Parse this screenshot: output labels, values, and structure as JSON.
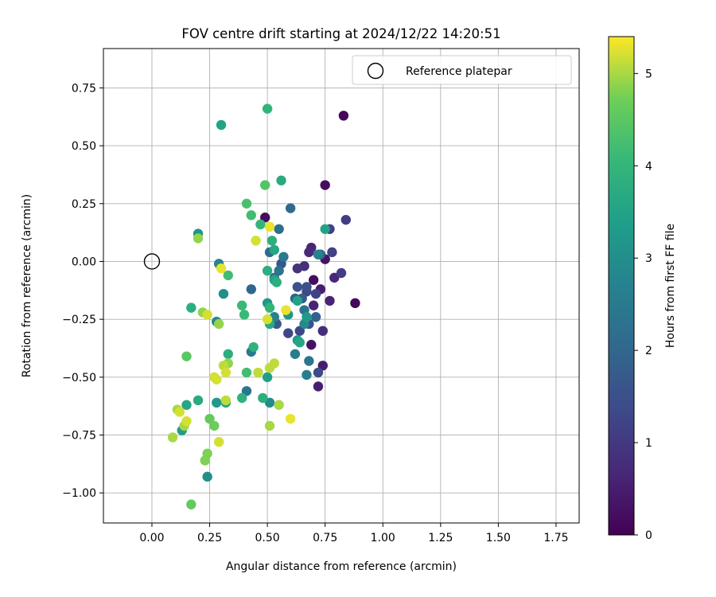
{
  "chart_data": {
    "type": "scatter",
    "title": "FOV centre drift starting at 2024/12/22 14:20:51",
    "xlabel": "Angular distance from reference (arcmin)",
    "ylabel": "Rotation from reference (arcmin)",
    "xlim": [
      -0.21,
      1.85
    ],
    "ylim": [
      -1.13,
      0.92
    ],
    "xticks": [
      0.0,
      0.25,
      0.5,
      0.75,
      1.0,
      1.25,
      1.5,
      1.75
    ],
    "xtick_labels": [
      "0.00",
      "0.25",
      "0.50",
      "0.75",
      "1.00",
      "1.25",
      "1.50",
      "1.75"
    ],
    "yticks": [
      0.75,
      0.5,
      0.25,
      0.0,
      -0.25,
      -0.5,
      -0.75,
      -1.0
    ],
    "ytick_labels": [
      "0.75",
      "0.50",
      "0.25",
      "0.00",
      "−0.25",
      "−0.50",
      "−0.75",
      "−1.00"
    ],
    "grid": true,
    "legend": {
      "label": "Reference platepar",
      "location": "upper right"
    },
    "reference_point": {
      "x": 0.0,
      "y": 0.0
    },
    "colorbar": {
      "label": "Hours from first FF file",
      "range": [
        0,
        5.4
      ],
      "ticks": [
        0,
        1,
        2,
        3,
        4,
        5
      ],
      "tick_labels": [
        "0",
        "1",
        "2",
        "3",
        "4",
        "5"
      ],
      "colormap": "viridis"
    },
    "points": [
      {
        "x": 0.83,
        "y": 0.63,
        "h": 0.1
      },
      {
        "x": 0.75,
        "y": 0.33,
        "h": 0.2
      },
      {
        "x": 0.88,
        "y": -0.18,
        "h": 0.1
      },
      {
        "x": 0.49,
        "y": 0.19,
        "h": 0.2
      },
      {
        "x": 0.7,
        "y": -0.08,
        "h": 0.2
      },
      {
        "x": 0.75,
        "y": 0.01,
        "h": 0.3
      },
      {
        "x": 0.69,
        "y": -0.36,
        "h": 0.3
      },
      {
        "x": 0.72,
        "y": -0.54,
        "h": 0.5
      },
      {
        "x": 0.74,
        "y": -0.45,
        "h": 0.5
      },
      {
        "x": 0.73,
        "y": -0.12,
        "h": 0.5
      },
      {
        "x": 0.69,
        "y": 0.06,
        "h": 0.6
      },
      {
        "x": 0.68,
        "y": 0.04,
        "h": 0.7
      },
      {
        "x": 0.7,
        "y": -0.19,
        "h": 0.6
      },
      {
        "x": 0.77,
        "y": -0.17,
        "h": 0.6
      },
      {
        "x": 0.79,
        "y": -0.07,
        "h": 0.7
      },
      {
        "x": 0.74,
        "y": -0.3,
        "h": 0.8
      },
      {
        "x": 0.66,
        "y": -0.02,
        "h": 0.8
      },
      {
        "x": 0.63,
        "y": -0.03,
        "h": 0.9
      },
      {
        "x": 0.84,
        "y": 0.18,
        "h": 1.1
      },
      {
        "x": 0.82,
        "y": -0.05,
        "h": 1.1
      },
      {
        "x": 0.77,
        "y": 0.14,
        "h": 1.2
      },
      {
        "x": 0.78,
        "y": 0.04,
        "h": 1.2
      },
      {
        "x": 0.71,
        "y": -0.14,
        "h": 1.2
      },
      {
        "x": 0.67,
        "y": -0.13,
        "h": 1.3
      },
      {
        "x": 0.64,
        "y": -0.3,
        "h": 1.3
      },
      {
        "x": 0.59,
        "y": -0.31,
        "h": 1.3
      },
      {
        "x": 0.72,
        "y": -0.48,
        "h": 1.4
      },
      {
        "x": 0.67,
        "y": -0.11,
        "h": 1.5
      },
      {
        "x": 0.63,
        "y": -0.11,
        "h": 1.5
      },
      {
        "x": 0.68,
        "y": -0.27,
        "h": 1.5
      },
      {
        "x": 0.56,
        "y": -0.01,
        "h": 1.6
      },
      {
        "x": 0.54,
        "y": -0.27,
        "h": 1.7
      },
      {
        "x": 0.65,
        "y": -0.16,
        "h": 1.7
      },
      {
        "x": 0.73,
        "y": 0.03,
        "h": 1.8
      },
      {
        "x": 0.62,
        "y": -0.16,
        "h": 1.9
      },
      {
        "x": 0.71,
        "y": -0.24,
        "h": 1.9
      },
      {
        "x": 0.43,
        "y": -0.12,
        "h": 2.0
      },
      {
        "x": 0.51,
        "y": 0.04,
        "h": 2.1
      },
      {
        "x": 0.6,
        "y": 0.23,
        "h": 2.1
      },
      {
        "x": 0.55,
        "y": 0.14,
        "h": 2.2
      },
      {
        "x": 0.53,
        "y": -0.07,
        "h": 2.2
      },
      {
        "x": 0.55,
        "y": -0.04,
        "h": 2.3
      },
      {
        "x": 0.66,
        "y": -0.21,
        "h": 2.3
      },
      {
        "x": 0.68,
        "y": -0.43,
        "h": 2.4
      },
      {
        "x": 0.41,
        "y": -0.56,
        "h": 2.4
      },
      {
        "x": 0.43,
        "y": -0.39,
        "h": 2.5
      },
      {
        "x": 0.57,
        "y": 0.02,
        "h": 2.5
      },
      {
        "x": 0.62,
        "y": -0.4,
        "h": 2.6
      },
      {
        "x": 0.67,
        "y": -0.49,
        "h": 2.6
      },
      {
        "x": 0.72,
        "y": 0.03,
        "h": 2.7
      },
      {
        "x": 0.53,
        "y": -0.24,
        "h": 2.7
      },
      {
        "x": 0.29,
        "y": -0.01,
        "h": 2.8
      },
      {
        "x": 0.28,
        "y": -0.26,
        "h": 2.8
      },
      {
        "x": 0.66,
        "y": -0.27,
        "h": 2.9
      },
      {
        "x": 0.51,
        "y": -0.61,
        "h": 2.9
      },
      {
        "x": 0.31,
        "y": -0.14,
        "h": 3.0
      },
      {
        "x": 0.24,
        "y": -0.93,
        "h": 3.0
      },
      {
        "x": 0.2,
        "y": 0.12,
        "h": 3.1
      },
      {
        "x": 0.5,
        "y": -0.18,
        "h": 3.2
      },
      {
        "x": 0.59,
        "y": -0.23,
        "h": 3.2
      },
      {
        "x": 0.67,
        "y": -0.24,
        "h": 3.3
      },
      {
        "x": 0.63,
        "y": -0.34,
        "h": 3.3
      },
      {
        "x": 0.28,
        "y": -0.61,
        "h": 3.3
      },
      {
        "x": 0.13,
        "y": -0.73,
        "h": 3.4
      },
      {
        "x": 0.5,
        "y": -0.5,
        "h": 3.4
      },
      {
        "x": 0.63,
        "y": -0.17,
        "h": 3.5
      },
      {
        "x": 0.3,
        "y": 0.59,
        "h": 3.5
      },
      {
        "x": 0.53,
        "y": -0.08,
        "h": 3.5
      },
      {
        "x": 0.75,
        "y": 0.14,
        "h": 3.5
      },
      {
        "x": 0.53,
        "y": 0.05,
        "h": 3.6
      },
      {
        "x": 0.64,
        "y": -0.35,
        "h": 3.6
      },
      {
        "x": 0.32,
        "y": -0.61,
        "h": 3.6
      },
      {
        "x": 0.15,
        "y": -0.62,
        "h": 3.6
      },
      {
        "x": 0.2,
        "y": -0.6,
        "h": 3.7
      },
      {
        "x": 0.51,
        "y": -0.27,
        "h": 3.7
      },
      {
        "x": 0.56,
        "y": 0.35,
        "h": 3.7
      },
      {
        "x": 0.52,
        "y": 0.09,
        "h": 3.8
      },
      {
        "x": 0.54,
        "y": -0.09,
        "h": 3.8
      },
      {
        "x": 0.5,
        "y": -0.04,
        "h": 3.8
      },
      {
        "x": 0.48,
        "y": -0.59,
        "h": 3.8
      },
      {
        "x": 0.33,
        "y": -0.4,
        "h": 3.8
      },
      {
        "x": 0.17,
        "y": -0.2,
        "h": 3.8
      },
      {
        "x": 0.44,
        "y": -0.37,
        "h": 3.9
      },
      {
        "x": 0.39,
        "y": -0.59,
        "h": 3.9
      },
      {
        "x": 0.5,
        "y": 0.66,
        "h": 4.0
      },
      {
        "x": 0.47,
        "y": 0.16,
        "h": 4.0
      },
      {
        "x": 0.51,
        "y": -0.2,
        "h": 4.0
      },
      {
        "x": 0.39,
        "y": -0.19,
        "h": 4.1
      },
      {
        "x": 0.4,
        "y": -0.23,
        "h": 4.1
      },
      {
        "x": 0.41,
        "y": -0.48,
        "h": 4.2
      },
      {
        "x": 0.33,
        "y": -0.06,
        "h": 4.2
      },
      {
        "x": 0.43,
        "y": 0.2,
        "h": 4.2
      },
      {
        "x": 0.41,
        "y": 0.25,
        "h": 4.3
      },
      {
        "x": 0.49,
        "y": 0.33,
        "h": 4.4
      },
      {
        "x": 0.15,
        "y": -0.41,
        "h": 4.5
      },
      {
        "x": 0.17,
        "y": -1.05,
        "h": 4.6
      },
      {
        "x": 0.25,
        "y": -0.68,
        "h": 4.6
      },
      {
        "x": 0.27,
        "y": -0.71,
        "h": 4.7
      },
      {
        "x": 0.24,
        "y": -0.83,
        "h": 4.8
      },
      {
        "x": 0.23,
        "y": -0.86,
        "h": 4.8
      },
      {
        "x": 0.2,
        "y": 0.1,
        "h": 4.9
      },
      {
        "x": 0.29,
        "y": -0.27,
        "h": 4.9
      },
      {
        "x": 0.33,
        "y": -0.44,
        "h": 4.9
      },
      {
        "x": 0.22,
        "y": -0.22,
        "h": 4.9
      },
      {
        "x": 0.11,
        "y": -0.64,
        "h": 5.0
      },
      {
        "x": 0.09,
        "y": -0.76,
        "h": 5.0
      },
      {
        "x": 0.14,
        "y": -0.71,
        "h": 5.0
      },
      {
        "x": 0.51,
        "y": -0.71,
        "h": 5.0
      },
      {
        "x": 0.55,
        "y": -0.62,
        "h": 5.0
      },
      {
        "x": 0.32,
        "y": -0.6,
        "h": 5.1
      },
      {
        "x": 0.53,
        "y": -0.44,
        "h": 5.1
      },
      {
        "x": 0.51,
        "y": -0.46,
        "h": 5.1
      },
      {
        "x": 0.46,
        "y": -0.48,
        "h": 5.1
      },
      {
        "x": 0.31,
        "y": -0.45,
        "h": 5.1
      },
      {
        "x": 0.32,
        "y": -0.48,
        "h": 5.2
      },
      {
        "x": 0.27,
        "y": -0.5,
        "h": 5.2
      },
      {
        "x": 0.28,
        "y": -0.51,
        "h": 5.2
      },
      {
        "x": 0.12,
        "y": -0.65,
        "h": 5.2
      },
      {
        "x": 0.15,
        "y": -0.69,
        "h": 5.2
      },
      {
        "x": 0.29,
        "y": -0.78,
        "h": 5.2
      },
      {
        "x": 0.24,
        "y": -0.23,
        "h": 5.2
      },
      {
        "x": 0.5,
        "y": -0.25,
        "h": 5.2
      },
      {
        "x": 0.45,
        "y": 0.09,
        "h": 5.2
      },
      {
        "x": 0.58,
        "y": -0.21,
        "h": 5.3
      },
      {
        "x": 0.6,
        "y": -0.68,
        "h": 5.3
      },
      {
        "x": 0.51,
        "y": 0.15,
        "h": 5.3
      },
      {
        "x": 0.3,
        "y": -0.03,
        "h": 5.3
      }
    ]
  }
}
